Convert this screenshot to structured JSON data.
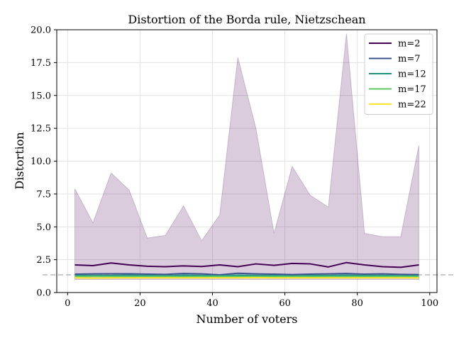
{
  "chart_data": {
    "type": "line",
    "title": "Distortion of the Borda rule, Nietzschean",
    "xlabel": "Number of voters",
    "ylabel": "Distortion",
    "xlim": [
      -3,
      102
    ],
    "ylim": [
      0,
      20
    ],
    "xticks": [
      0,
      20,
      40,
      60,
      80,
      100
    ],
    "xtick_labels": [
      "0",
      "20",
      "40",
      "60",
      "80",
      "100"
    ],
    "yticks": [
      0,
      2.5,
      5,
      7.5,
      10,
      12.5,
      15,
      17.5,
      20
    ],
    "ytick_labels": [
      "0.0",
      "2.5",
      "5.0",
      "7.5",
      "10.0",
      "12.5",
      "15.0",
      "17.5",
      "20.0"
    ],
    "grid": true,
    "legend_position": "top-right",
    "reference_line": {
      "y": 1.35,
      "style": "dashed",
      "color": "#b8b8b8"
    },
    "x": [
      2,
      7,
      12,
      17,
      22,
      27,
      32,
      37,
      42,
      47,
      52,
      57,
      62,
      67,
      72,
      77,
      82,
      87,
      92,
      97
    ],
    "band": {
      "series": "m=2",
      "color": "#440154",
      "upper": [
        7.9,
        5.3,
        9.1,
        7.8,
        4.15,
        4.35,
        6.6,
        3.95,
        5.9,
        17.9,
        12.5,
        4.5,
        9.6,
        7.4,
        6.5,
        19.7,
        4.5,
        4.25,
        4.25,
        11.2
      ],
      "lower": [
        1.0,
        1.0,
        1.0,
        1.0,
        1.0,
        1.0,
        1.0,
        1.0,
        1.0,
        1.0,
        1.0,
        1.0,
        1.0,
        1.0,
        1.0,
        1.0,
        1.0,
        1.0,
        1.0,
        1.0
      ]
    },
    "series": [
      {
        "name": "m=2",
        "color": "#440154",
        "values": [
          2.1,
          2.05,
          2.25,
          2.1,
          2.0,
          1.97,
          2.03,
          1.98,
          2.1,
          1.97,
          2.18,
          2.07,
          2.22,
          2.18,
          1.95,
          2.28,
          2.1,
          1.97,
          1.92,
          2.1
        ]
      },
      {
        "name": "m=7",
        "color": "#3b528b",
        "values": [
          1.4,
          1.42,
          1.43,
          1.43,
          1.4,
          1.38,
          1.45,
          1.42,
          1.35,
          1.47,
          1.42,
          1.4,
          1.37,
          1.4,
          1.42,
          1.45,
          1.4,
          1.42,
          1.38,
          1.37
        ]
      },
      {
        "name": "m=12",
        "color": "#21918c",
        "values": [
          1.3,
          1.3,
          1.3,
          1.32,
          1.3,
          1.28,
          1.32,
          1.3,
          1.28,
          1.32,
          1.3,
          1.3,
          1.27,
          1.3,
          1.3,
          1.32,
          1.3,
          1.3,
          1.28,
          1.28
        ]
      },
      {
        "name": "m=17",
        "color": "#5ec962",
        "values": [
          1.22,
          1.23,
          1.22,
          1.22,
          1.22,
          1.22,
          1.21,
          1.22,
          1.22,
          1.22,
          1.22,
          1.21,
          1.22,
          1.21,
          1.22,
          1.22,
          1.21,
          1.22,
          1.22,
          1.21
        ]
      },
      {
        "name": "m=22",
        "color": "#fde725",
        "values": [
          1.12,
          1.1,
          1.12,
          1.12,
          1.12,
          1.12,
          1.12,
          1.12,
          1.12,
          1.12,
          1.13,
          1.12,
          1.12,
          1.12,
          1.12,
          1.12,
          1.12,
          1.12,
          1.12,
          1.12
        ]
      }
    ]
  }
}
